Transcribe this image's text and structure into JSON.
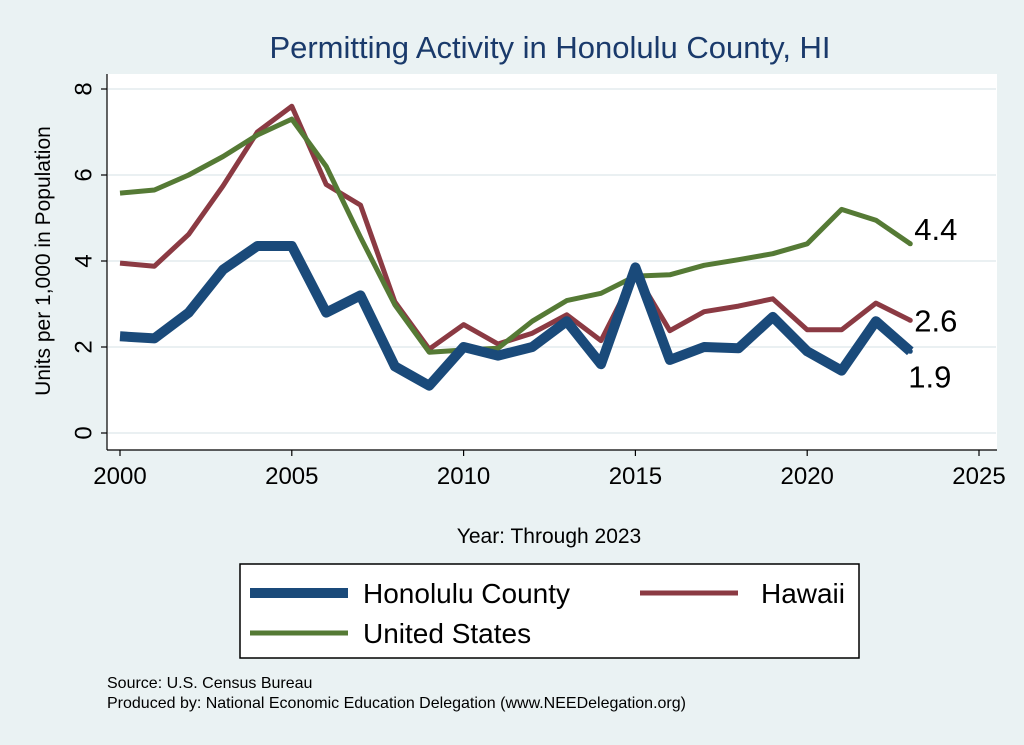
{
  "chart_data": {
    "type": "line",
    "title": "Permitting Activity in Honolulu County, HI",
    "xlabel": "Year: Through 2023",
    "ylabel": "Units per 1,000 in Population",
    "xlim": [
      2000,
      2025
    ],
    "ylim": [
      0,
      8
    ],
    "xticks": [
      2000,
      2005,
      2010,
      2015,
      2020,
      2025
    ],
    "yticks": [
      0,
      2,
      4,
      6,
      8
    ],
    "grid": true,
    "legend_position": "bottom",
    "x": [
      2000,
      2001,
      2002,
      2003,
      2004,
      2005,
      2006,
      2007,
      2008,
      2009,
      2010,
      2011,
      2012,
      2013,
      2014,
      2015,
      2016,
      2017,
      2018,
      2019,
      2020,
      2021,
      2022,
      2023
    ],
    "series": [
      {
        "name": "Honolulu County",
        "color": "#1a4a7a",
        "end_label": "1.9",
        "values": [
          2.25,
          2.2,
          2.8,
          3.8,
          4.35,
          4.35,
          2.8,
          3.2,
          1.55,
          1.1,
          2.0,
          1.8,
          2.0,
          2.6,
          1.6,
          3.85,
          1.7,
          2.0,
          1.97,
          2.7,
          1.9,
          1.45,
          2.6,
          1.9
        ]
      },
      {
        "name": "Hawaii",
        "color": "#8b3a43",
        "end_label": "2.6",
        "values": [
          3.95,
          3.88,
          4.62,
          5.75,
          7.0,
          7.6,
          5.78,
          5.3,
          3.05,
          1.95,
          2.52,
          2.07,
          2.32,
          2.75,
          2.15,
          3.72,
          2.38,
          2.82,
          2.95,
          3.12,
          2.4,
          2.4,
          3.02,
          2.62
        ]
      },
      {
        "name": "United States",
        "color": "#557a35",
        "end_label": "4.4",
        "values": [
          5.58,
          5.65,
          6.0,
          6.43,
          6.93,
          7.3,
          6.2,
          4.55,
          2.98,
          1.88,
          1.93,
          1.97,
          2.6,
          3.08,
          3.25,
          3.65,
          3.68,
          3.9,
          4.03,
          4.17,
          4.4,
          5.2,
          4.95,
          4.4
        ]
      }
    ]
  },
  "footer": {
    "source": "Source: U.S. Census Bureau",
    "produced_by": "Produced by: National Economic Education Delegation (www.NEEDelegation.org)"
  }
}
